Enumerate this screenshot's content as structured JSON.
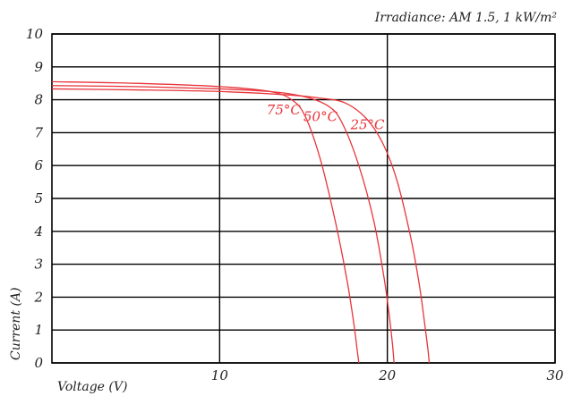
{
  "chart_data": {
    "type": "line",
    "annotation": "Irradiance: AM 1.5, 1 kW/m²",
    "xlabel": "Voltage (V)",
    "ylabel": "Current (A)",
    "xlim": [
      0,
      30
    ],
    "ylim": [
      0,
      10
    ],
    "x_ticks": [
      "10",
      "20",
      "30"
    ],
    "y_ticks": [
      "0",
      "1",
      "2",
      "3",
      "4",
      "5",
      "6",
      "7",
      "8",
      "9",
      "10"
    ],
    "grid": true,
    "line_color": "#e8343a",
    "series": [
      {
        "name": "25°C",
        "x": [
          0,
          5,
          10,
          14,
          16,
          17.5,
          18.8,
          19.8,
          20.6,
          21.4,
          21.9,
          22.2,
          22.4,
          22.5
        ],
        "y": [
          8.33,
          8.3,
          8.25,
          8.15,
          8.05,
          7.9,
          7.4,
          6.6,
          5.5,
          3.8,
          2.4,
          1.3,
          0.5,
          0
        ]
      },
      {
        "name": "50°C",
        "x": [
          0,
          5,
          10,
          13,
          15,
          16.5,
          17.3,
          18.3,
          19.2,
          19.8,
          20.1,
          20.3,
          20.4
        ],
        "y": [
          8.43,
          8.4,
          8.33,
          8.25,
          8.1,
          7.8,
          7.3,
          6.0,
          4.3,
          2.6,
          1.5,
          0.6,
          0
        ]
      },
      {
        "name": "75°C",
        "x": [
          0,
          5,
          10,
          13,
          14.3,
          15.1,
          16.0,
          16.9,
          17.6,
          18.0,
          18.2,
          18.3
        ],
        "y": [
          8.55,
          8.5,
          8.4,
          8.25,
          8.0,
          7.5,
          6.2,
          4.3,
          2.5,
          1.2,
          0.4,
          0
        ]
      }
    ]
  }
}
